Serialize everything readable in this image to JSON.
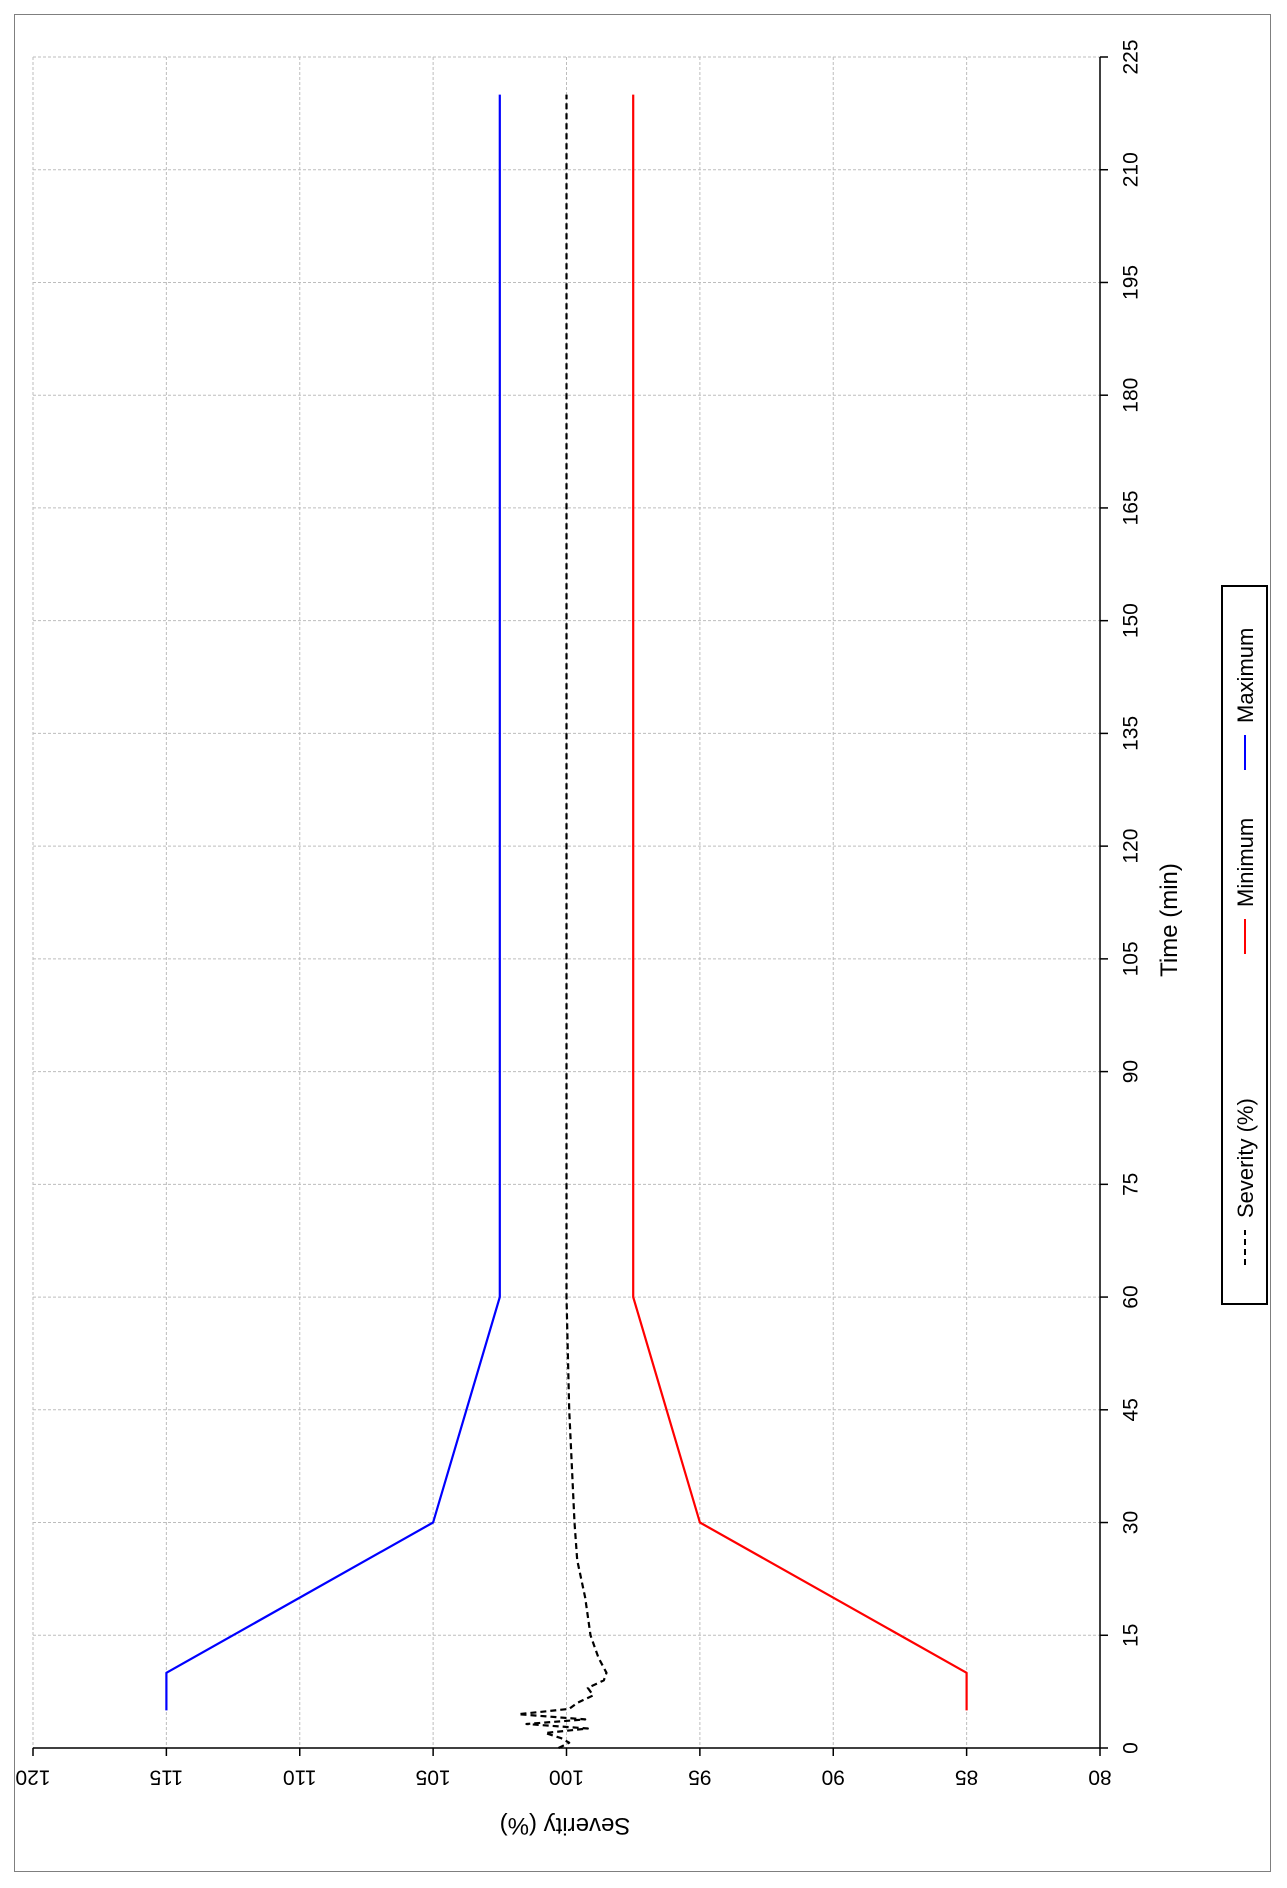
{
  "chart_data": {
    "type": "line",
    "orientation": "rotated-90-clockwise",
    "xlabel": "Time (min)",
    "ylabel": "Severity (%)",
    "xlim": [
      0,
      225
    ],
    "ylim": [
      80,
      120
    ],
    "x_ticks": [
      0,
      15,
      30,
      45,
      60,
      75,
      90,
      105,
      120,
      135,
      150,
      165,
      180,
      195,
      210,
      225
    ],
    "y_ticks": [
      80,
      85,
      90,
      95,
      100,
      105,
      110,
      115,
      120
    ],
    "grid": true,
    "legend_position": "bottom",
    "series": [
      {
        "name": "Severity (%)",
        "color": "#000000",
        "style": "dashed",
        "points": [
          [
            0,
            100.3
          ],
          [
            0.7,
            99.9
          ],
          [
            1.3,
            100.2
          ],
          [
            2,
            100.8
          ],
          [
            2.6,
            99.2
          ],
          [
            3.2,
            101.5
          ],
          [
            3.8,
            99.3
          ],
          [
            4.5,
            101.8
          ],
          [
            5.2,
            99.9
          ],
          [
            6,
            99.6
          ],
          [
            7,
            99.0
          ],
          [
            8,
            99.2
          ],
          [
            9,
            98.6
          ],
          [
            10,
            98.5
          ],
          [
            12,
            98.8
          ],
          [
            15,
            99.1
          ],
          [
            20,
            99.3
          ],
          [
            25,
            99.6
          ],
          [
            30,
            99.7
          ],
          [
            45,
            99.9
          ],
          [
            60,
            100.0
          ],
          [
            90,
            100.0
          ],
          [
            120,
            100.0
          ],
          [
            150,
            100.0
          ],
          [
            180,
            100.0
          ],
          [
            220,
            100.0
          ]
        ]
      },
      {
        "name": "Minimum",
        "color": "#ff0000",
        "style": "solid",
        "points": [
          [
            5,
            85
          ],
          [
            10,
            85
          ],
          [
            30,
            95
          ],
          [
            60,
            97.5
          ],
          [
            220,
            97.5
          ]
        ]
      },
      {
        "name": "Maximum",
        "color": "#0000ff",
        "style": "solid",
        "points": [
          [
            5,
            115
          ],
          [
            10,
            115
          ],
          [
            30,
            105
          ],
          [
            60,
            102.5
          ],
          [
            220,
            102.5
          ]
        ]
      }
    ]
  }
}
